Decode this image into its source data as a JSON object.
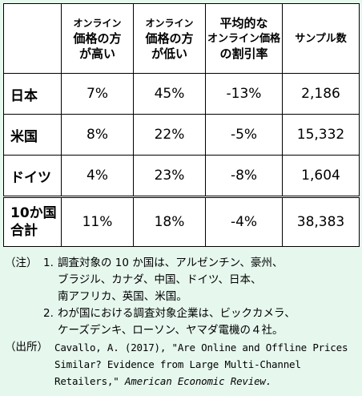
{
  "table": {
    "headers": [
      "",
      [
        "オンライン",
        "価格の方",
        "が高い"
      ],
      [
        "オンライン",
        "価格の方",
        "が低い"
      ],
      [
        "平均的な",
        "オンライン価格",
        "の割引率"
      ],
      [
        "サンプル数"
      ]
    ],
    "rows": [
      {
        "label": "日本",
        "higher": "7%",
        "lower": "45%",
        "discount": "-13%",
        "samples": "2,186"
      },
      {
        "label": "米国",
        "higher": "8%",
        "lower": "22%",
        "discount": "-5%",
        "samples": "15,332"
      },
      {
        "label": "ドイツ",
        "higher": "4%",
        "lower": "23%",
        "discount": "-8%",
        "samples": "1,604"
      }
    ],
    "total": {
      "label_line1": "10か国",
      "label_line2": "合計",
      "higher": "11%",
      "lower": "18%",
      "discount": "-4%",
      "samples": "38,383"
    }
  },
  "notes": {
    "note_tag": "（注）",
    "note1_num": "1.",
    "note1_lines": [
      "調査対象の 10 か国は、アルゼンチン、豪州、",
      "ブラジル、カナダ、中国、ドイツ、日本、",
      "南アフリカ、英国、米国。"
    ],
    "note2_num": "2.",
    "note2_lines": [
      "わが国における調査対象企業は、ビックカメラ、",
      "ケーズデンキ、ローソン、ヤマダ電機の４社。"
    ],
    "source_tag": "（出所）",
    "source_line1": "Cavallo, A. (2017), \"Are Online and Offline Prices",
    "source_line2": "Similar? Evidence from Large Multi-Channel",
    "source_line3_plain": "Retailers,\" ",
    "source_line3_italic": "American Economic Review."
  }
}
